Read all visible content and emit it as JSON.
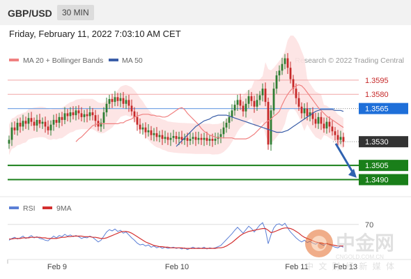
{
  "header": {
    "symbol": "GBP/USD",
    "timeframe": "30 MIN",
    "datetime": "Friday, February 11, 2022 7:03:10 AM CET"
  },
  "legend": {
    "ma20_label": "MA 20 + Bollinger Bands",
    "ma50_label": "MA 50",
    "credit": "Research © 2022 Trading Central"
  },
  "colors": {
    "up": "#2e7d32",
    "down": "#c62828",
    "ma20": "#f08080",
    "ma50": "#3b5ea8",
    "band": "#fde2e2",
    "resistance": "#c62828",
    "pivot": "#1e6fd9",
    "support": "#1a7f1a",
    "arrow": "#2f62b0",
    "rsi": "#5b7fd6",
    "rsi_ma": "#d32f2f"
  },
  "watermark": {
    "cn": "中金网",
    "site": "CNGOLD.COM.CN",
    "tagline": "中 文 财 经 新 媒 体"
  },
  "chart_data": [
    {
      "type": "candlestick",
      "ylim": [
        1.3472,
        1.3628
      ],
      "xlabels": [
        "Feb 9",
        "Feb 10",
        "Feb 11",
        "Feb 13"
      ],
      "levels": [
        {
          "value": 1.3595,
          "label": "1.3595",
          "kind": "resistance"
        },
        {
          "value": 1.358,
          "label": "1.3580",
          "kind": "resistance"
        },
        {
          "value": 1.3565,
          "label": "1.3565",
          "kind": "pivot"
        },
        {
          "value": 1.353,
          "label": "1.3530",
          "kind": "last"
        },
        {
          "value": 1.3505,
          "label": "1.3505",
          "kind": "support"
        },
        {
          "value": 1.349,
          "label": "1.3490",
          "kind": "support"
        }
      ],
      "close": [
        1.3532,
        1.3545,
        1.3542,
        1.355,
        1.3546,
        1.3552,
        1.3549,
        1.3555,
        1.3551,
        1.3547,
        1.3553,
        1.3549,
        1.3551,
        1.3546,
        1.3542,
        1.3548,
        1.3553,
        1.355,
        1.3556,
        1.3553,
        1.356,
        1.3557,
        1.3561,
        1.3558,
        1.3563,
        1.356,
        1.3556,
        1.3559,
        1.3557,
        1.3561,
        1.3558,
        1.3552,
        1.3546,
        1.355,
        1.3561,
        1.357,
        1.3575,
        1.3572,
        1.3577,
        1.3573,
        1.3576,
        1.357,
        1.3574,
        1.3568,
        1.3562,
        1.3556,
        1.3548,
        1.3543,
        1.3545,
        1.354,
        1.3542,
        1.3537,
        1.3539,
        1.3535,
        1.3537,
        1.3533,
        1.3535,
        1.3532,
        1.3534,
        1.3536,
        1.3533,
        1.3535,
        1.3532,
        1.3534,
        1.3531,
        1.3533,
        1.3535,
        1.3532,
        1.3534,
        1.3532,
        1.3534,
        1.3531,
        1.3533,
        1.3531,
        1.3533,
        1.3535,
        1.3538,
        1.3545,
        1.355,
        1.3556,
        1.3563,
        1.3569,
        1.3574,
        1.3568,
        1.3562,
        1.357,
        1.3578,
        1.3573,
        1.3567,
        1.3574,
        1.3579,
        1.3586,
        1.3572,
        1.3527,
        1.3563,
        1.3586,
        1.36,
        1.3605,
        1.3612,
        1.3618,
        1.3608,
        1.3596,
        1.3586,
        1.3576,
        1.3567,
        1.356,
        1.3565,
        1.3557,
        1.3561,
        1.3554,
        1.3549,
        1.3556,
        1.3549,
        1.3544,
        1.3551,
        1.3546,
        1.3541,
        1.3537,
        1.3532,
        1.3535,
        1.353
      ],
      "ma20": [
        1.353,
        1.3533,
        1.3535,
        1.3538,
        1.3541,
        1.3544,
        1.3547,
        1.3548,
        1.3549,
        1.3549,
        1.3549,
        1.3549,
        1.3549,
        1.3549,
        1.3549,
        1.3549,
        1.355,
        1.355,
        1.3552,
        1.3553,
        1.3554,
        1.3556,
        1.3557,
        1.3558,
        1.3559,
        1.3559,
        1.3559,
        1.3558,
        1.3558,
        1.3557,
        1.3557,
        1.3556,
        1.3556,
        1.3557,
        1.3559,
        1.3561,
        1.3563,
        1.3565,
        1.3566,
        1.3564,
        1.356,
        1.3557,
        1.3554,
        1.3551,
        1.3548,
        1.3544,
        1.3541,
        1.3539,
        1.3537,
        1.3536,
        1.3535,
        1.3534,
        1.3534,
        1.3534,
        1.3534,
        1.3534,
        1.3534,
        1.3533,
        1.3533,
        1.3533,
        1.3533,
        1.3533,
        1.3534,
        1.3536,
        1.3538,
        1.3541,
        1.3544,
        1.3547,
        1.355,
        1.3552,
        1.3554,
        1.3557,
        1.3559,
        1.3562,
        1.3569,
        1.3575,
        1.358,
        1.3584,
        1.3587,
        1.3589,
        1.359,
        1.3589,
        1.3586,
        1.3582,
        1.3578,
        1.3574,
        1.357,
        1.3566,
        1.3563,
        1.356,
        1.3557,
        1.3555,
        1.3553,
        1.3551,
        1.3549,
        1.3547,
        1.3545
      ],
      "ma20_start": 24,
      "ma50": [
        1.3525,
        1.3528,
        1.3531,
        1.3534,
        1.3537,
        1.354,
        1.3543,
        1.3546,
        1.3548,
        1.355,
        1.3552,
        1.3553,
        1.3554,
        1.3556,
        1.3557,
        1.3558,
        1.3558,
        1.3558,
        1.3558,
        1.3557,
        1.3556,
        1.3555,
        1.3554,
        1.3553,
        1.3552,
        1.3551,
        1.355,
        1.3549,
        1.3548,
        1.3547,
        1.3546,
        1.3545,
        1.3544,
        1.3543,
        1.3542,
        1.3541,
        1.354,
        1.354,
        1.354,
        1.3541,
        1.3542,
        1.3544,
        1.3546,
        1.3548,
        1.355,
        1.3552,
        1.3554,
        1.3556,
        1.3558,
        1.356,
        1.3562,
        1.3563,
        1.3564,
        1.3564,
        1.3564,
        1.3564,
        1.3564,
        1.3563,
        1.3563,
        1.3563,
        1.3562
      ],
      "ma50_start": 60,
      "band_halfwidth": 0.0016
    },
    {
      "type": "line",
      "legend": [
        "RSI",
        "9MA"
      ],
      "ylim": [
        10,
        90
      ],
      "yticks": [
        70
      ],
      "rsi": [
        43,
        46,
        48,
        45,
        47,
        50,
        46,
        48,
        51,
        47,
        49,
        46,
        45,
        43,
        42,
        46,
        50,
        47,
        51,
        49,
        53,
        50,
        52,
        49,
        51,
        49,
        46,
        48,
        47,
        50,
        48,
        44,
        40,
        43,
        50,
        57,
        61,
        59,
        62,
        58,
        60,
        55,
        57,
        52,
        47,
        43,
        38,
        35,
        36,
        33,
        35,
        31,
        33,
        30,
        32,
        29,
        31,
        29,
        30,
        31,
        29,
        30,
        28,
        30,
        27,
        29,
        31,
        29,
        30,
        29,
        31,
        28,
        30,
        29,
        30,
        32,
        34,
        39,
        44,
        49,
        54,
        60,
        65,
        60,
        55,
        61,
        67,
        63,
        57,
        63,
        69,
        73,
        61,
        37,
        52,
        64,
        70,
        71,
        68,
        72,
        64,
        57,
        52,
        47,
        43,
        40,
        43,
        39,
        41,
        38,
        36,
        39,
        36,
        34,
        38,
        35,
        33,
        31,
        30,
        33,
        31
      ],
      "rsi_ma": [
        45,
        45,
        46,
        46,
        46,
        47,
        47,
        47,
        48,
        48,
        48,
        48,
        47,
        47,
        46,
        46,
        46,
        46,
        47,
        48,
        48,
        49,
        49,
        50,
        50,
        50,
        50,
        49,
        49,
        49,
        48,
        48,
        47,
        46,
        46,
        47,
        49,
        51,
        53,
        55,
        57,
        58,
        58,
        57,
        55,
        52,
        49,
        46,
        43,
        40,
        38,
        36,
        34,
        33,
        32,
        32,
        31,
        31,
        30,
        30,
        30,
        30,
        30,
        29,
        29,
        29,
        29,
        29,
        29,
        29,
        29,
        29,
        29,
        29,
        29,
        30,
        30,
        31,
        33,
        36,
        39,
        43,
        47,
        51,
        54,
        56,
        58,
        59,
        60,
        61,
        62,
        63,
        63,
        60,
        56,
        57,
        59,
        61,
        63,
        64,
        64,
        63,
        61,
        58,
        55,
        51,
        48,
        46,
        44,
        42,
        40,
        39,
        38,
        37,
        37,
        36,
        35,
        34,
        33,
        33,
        33
      ]
    }
  ]
}
